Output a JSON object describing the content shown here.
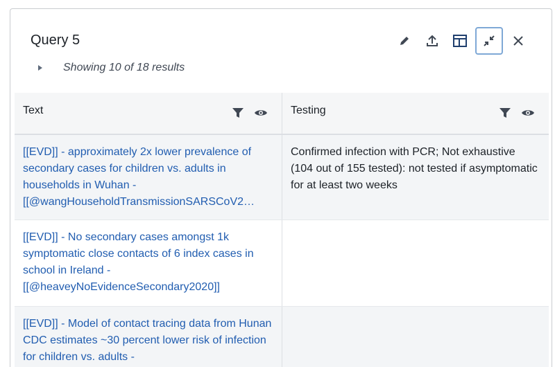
{
  "panel": {
    "title": "Query 5",
    "results_summary": "Showing 10 of 18 results"
  },
  "toolbar": {
    "icons": [
      "pencil-icon",
      "upload-icon",
      "layout-icon",
      "minimize-icon",
      "close-icon"
    ],
    "active": "minimize-icon"
  },
  "table": {
    "columns": [
      {
        "label": "Text"
      },
      {
        "label": "Testing"
      }
    ],
    "rows": [
      {
        "text": "[[EVD]] - approximately 2x lower prevalence of secondary cases for children vs. adults in households in Wuhan - [[@wangHouseholdTransmissionSARSCoV2…",
        "testing": "Confirmed infection with PCR; Not exhaustive (104 out of 155 tested): not tested if asymptomatic for at least two weeks"
      },
      {
        "text": "[[EVD]] - No secondary cases amongst 1k symptomatic close contacts of 6 index cases in school in Ireland - [[@heaveyNoEvidenceSecondary2020]]",
        "testing": ""
      },
      {
        "text": "[[EVD]] - Model of contact tracing data from Hunan CDC estimates ~30 percent lower risk of infection for children vs. adults -",
        "testing": ""
      }
    ]
  },
  "colors": {
    "link": "#215db0",
    "active_border": "#7ea8d6",
    "row_alt": "#f3f5f7"
  }
}
